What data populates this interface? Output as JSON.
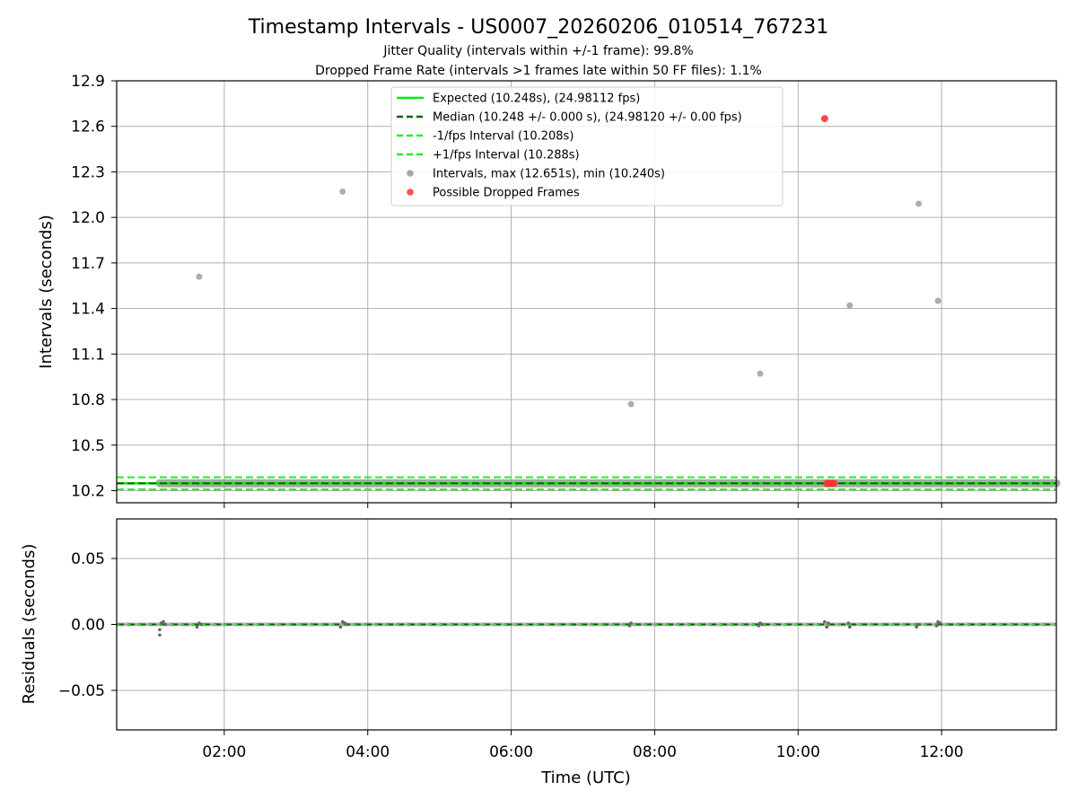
{
  "header": {
    "title": "Timestamp Intervals - US0007_20260206_010514_767231",
    "subtitle1": "Jitter Quality (intervals within +/-1 frame): 99.8%",
    "subtitle2": "Dropped Frame Rate (intervals >1 frames late within 50 FF files): 1.1%"
  },
  "chart_data": [
    {
      "type": "scatter",
      "ylabel": "Intervals (seconds)",
      "xlim_hours": [
        0.5,
        13.6
      ],
      "ylim": [
        10.12,
        12.9
      ],
      "yticks": [
        10.2,
        10.5,
        10.8,
        11.1,
        11.4,
        11.7,
        12.0,
        12.3,
        12.6,
        12.9
      ],
      "ytick_labels": [
        "10.2",
        "10.5",
        "10.8",
        "11.1",
        "11.4",
        "11.7",
        "12.0",
        "12.3",
        "12.6",
        "12.9"
      ],
      "grid": true,
      "legend_placement": "upper-center",
      "reference_lines": [
        {
          "name": "Expected (10.248s), (24.98112 fps)",
          "y": 10.248,
          "style": "solid",
          "color": "#00ee00"
        },
        {
          "name": "Median (10.248 +/- 0.000 s), (24.98120 +/- 0.00 fps)",
          "y": 10.248,
          "style": "dashed",
          "color": "#006400"
        },
        {
          "name": "-1/fps Interval (10.208s)",
          "y": 10.208,
          "style": "dashed",
          "color": "#22ee22"
        },
        {
          "name": "+1/fps Interval (10.288s)",
          "y": 10.288,
          "style": "dashed",
          "color": "#22ee22"
        }
      ],
      "series": [
        {
          "name": "Intervals, max (12.651s), min (10.240s)",
          "color": "#999999",
          "baseline_y": 10.248,
          "baseline_x_range_hours": [
            1.1,
            13.6
          ],
          "x_hours": [
            1.65,
            3.65,
            7.67,
            9.47,
            10.72,
            11.68,
            11.95
          ],
          "y": [
            11.61,
            12.17,
            10.77,
            10.97,
            11.42,
            12.09,
            11.45
          ]
        },
        {
          "name": "Possible Dropped Frames",
          "color": "#ff3333",
          "x_hours": [
            10.37,
            10.4,
            10.42,
            10.44,
            10.46,
            10.48,
            10.5
          ],
          "y": [
            12.651,
            10.248,
            10.248,
            10.248,
            10.248,
            10.248,
            10.248
          ]
        }
      ]
    },
    {
      "type": "scatter",
      "xlabel": "Time (UTC)",
      "ylabel": "Residuals (seconds)",
      "xlim_hours": [
        0.5,
        13.6
      ],
      "ylim": [
        -0.08,
        0.08
      ],
      "yticks": [
        -0.05,
        0.0,
        0.05
      ],
      "ytick_labels": [
        "−0.05",
        "0.00",
        "0.05"
      ],
      "xticks_hours": [
        2,
        4,
        6,
        8,
        10,
        12
      ],
      "xtick_labels": [
        "02:00",
        "04:00",
        "06:00",
        "08:00",
        "10:00",
        "12:00"
      ],
      "grid": true,
      "reference_lines": [
        {
          "y": 0.0,
          "style": "dashed",
          "color": "#006400"
        }
      ],
      "series": [
        {
          "name": "Residuals",
          "color": "#666666",
          "x_hours": [
            1.1,
            1.1,
            1.12,
            1.15,
            1.18,
            1.65,
            1.62,
            1.68,
            3.65,
            3.62,
            3.68,
            3.7,
            7.67,
            7.65,
            9.47,
            9.45,
            9.5,
            10.37,
            10.4,
            10.42,
            10.72,
            10.7,
            11.68,
            11.65,
            11.95,
            11.93,
            11.98
          ],
          "y": [
            -0.004,
            -0.008,
            0.001,
            0.002,
            0.0,
            0.001,
            -0.002,
            0.0,
            0.002,
            -0.002,
            0.001,
            0.0,
            0.001,
            -0.001,
            0.001,
            -0.001,
            0.0,
            0.002,
            -0.002,
            0.001,
            -0.002,
            0.001,
            0.0,
            -0.002,
            0.002,
            -0.001,
            0.001
          ]
        }
      ]
    }
  ]
}
